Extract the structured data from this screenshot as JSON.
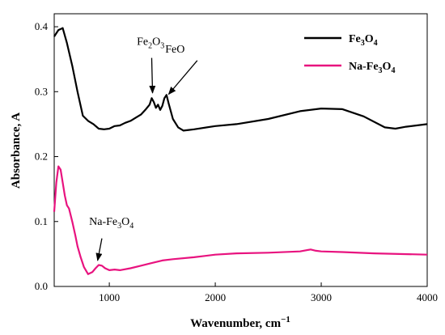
{
  "chart_data": {
    "type": "line",
    "xlabel": "Wavenumber, cm",
    "xlabel_sup": "−1",
    "ylabel": "Absorbance, A",
    "xlim": [
      480,
      4000
    ],
    "ylim": [
      0,
      0.42
    ],
    "xticks": [
      1000,
      2000,
      3000,
      4000
    ],
    "yticks": [
      0.0,
      0.1,
      0.2,
      0.3,
      0.4
    ],
    "grid": false,
    "legend_position": "top-right",
    "series": [
      {
        "name": "Fe3O4",
        "label_parts": [
          "Fe",
          "3",
          "O",
          "4"
        ],
        "color": "#000000",
        "x": [
          480,
          520,
          560,
          600,
          650,
          700,
          750,
          800,
          850,
          900,
          950,
          1000,
          1050,
          1100,
          1150,
          1200,
          1250,
          1300,
          1340,
          1380,
          1400,
          1420,
          1440,
          1460,
          1480,
          1500,
          1520,
          1540,
          1560,
          1600,
          1650,
          1700,
          1750,
          1800,
          2000,
          2200,
          2500,
          2800,
          3000,
          3200,
          3400,
          3600,
          3700,
          3800,
          4000
        ],
        "y": [
          0.385,
          0.395,
          0.398,
          0.375,
          0.34,
          0.3,
          0.263,
          0.255,
          0.25,
          0.243,
          0.242,
          0.243,
          0.247,
          0.248,
          0.252,
          0.255,
          0.26,
          0.265,
          0.272,
          0.28,
          0.29,
          0.284,
          0.275,
          0.28,
          0.272,
          0.278,
          0.29,
          0.295,
          0.282,
          0.258,
          0.245,
          0.24,
          0.241,
          0.242,
          0.247,
          0.25,
          0.258,
          0.27,
          0.274,
          0.273,
          0.262,
          0.245,
          0.243,
          0.246,
          0.25
        ]
      },
      {
        "name": "Na-Fe3O4",
        "label_parts": [
          "Na-Fe",
          "3",
          "O",
          "4"
        ],
        "color": "#e8137f",
        "x": [
          480,
          500,
          520,
          540,
          560,
          580,
          600,
          620,
          650,
          680,
          700,
          730,
          760,
          800,
          840,
          870,
          900,
          930,
          960,
          1000,
          1050,
          1100,
          1200,
          1300,
          1400,
          1500,
          1600,
          1800,
          2000,
          2200,
          2500,
          2800,
          2900,
          2950,
          3000,
          3200,
          3500,
          4000
        ],
        "y": [
          0.115,
          0.16,
          0.185,
          0.18,
          0.16,
          0.14,
          0.125,
          0.12,
          0.1,
          0.078,
          0.062,
          0.045,
          0.03,
          0.019,
          0.022,
          0.028,
          0.033,
          0.032,
          0.028,
          0.025,
          0.026,
          0.025,
          0.028,
          0.032,
          0.036,
          0.04,
          0.042,
          0.045,
          0.049,
          0.051,
          0.052,
          0.054,
          0.057,
          0.055,
          0.054,
          0.053,
          0.051,
          0.049
        ]
      }
    ],
    "annotations": [
      {
        "text_parts": [
          "Fe",
          "2",
          "O",
          "3"
        ],
        "text_x": 1390,
        "text_y": 0.372,
        "arrow_from": [
          1400,
          0.352
        ],
        "arrow_to": [
          1408,
          0.298
        ]
      },
      {
        "text": "FeO",
        "text_x": 1620,
        "text_y": 0.36,
        "arrow_from": [
          1830,
          0.348
        ],
        "arrow_to": [
          1560,
          0.296
        ]
      },
      {
        "text_parts": [
          "Na-Fe",
          "3",
          "O",
          "4"
        ],
        "text_x": 1020,
        "text_y": 0.095,
        "arrow_from": [
          930,
          0.074
        ],
        "arrow_to": [
          890,
          0.04
        ]
      }
    ]
  }
}
